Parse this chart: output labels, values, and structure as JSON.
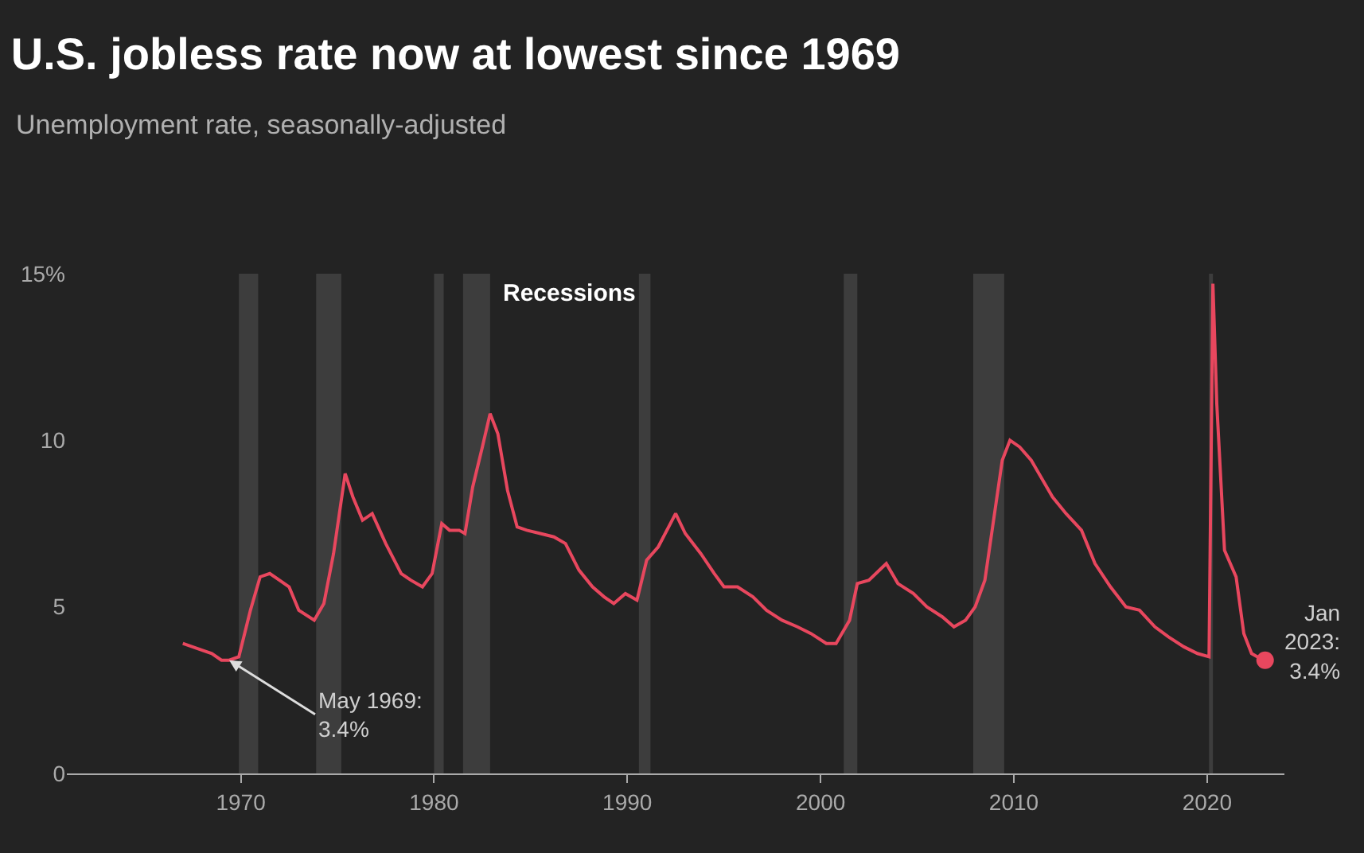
{
  "chart_data": {
    "type": "line",
    "title": "U.S. jobless rate now at lowest since 1969",
    "subtitle": "Unemployment rate, seasonally-adjusted",
    "xlim": [
      1961,
      2024
    ],
    "xticks": [
      1970,
      1980,
      1990,
      2000,
      2010,
      2020
    ],
    "ylim": [
      0,
      15
    ],
    "yticks": [
      0,
      5,
      10,
      {
        "value": 15,
        "label": "15%"
      }
    ],
    "grid": false,
    "line_style": "solid",
    "bands": [
      {
        "axis": "x",
        "from": 1969.9,
        "to": 1970.9,
        "color": "#3d3d3d"
      },
      {
        "axis": "x",
        "from": 1973.9,
        "to": 1975.2,
        "color": "#3d3d3d"
      },
      {
        "axis": "x",
        "from": 1980.0,
        "to": 1980.5,
        "color": "#3d3d3d"
      },
      {
        "axis": "x",
        "from": 1981.5,
        "to": 1982.9,
        "color": "#3d3d3d",
        "label": "Recessions"
      },
      {
        "axis": "x",
        "from": 1990.6,
        "to": 1991.2,
        "color": "#3d3d3d"
      },
      {
        "axis": "x",
        "from": 2001.2,
        "to": 2001.9,
        "color": "#3d3d3d"
      },
      {
        "axis": "x",
        "from": 2007.9,
        "to": 2009.5,
        "color": "#3d3d3d"
      },
      {
        "axis": "x",
        "from": 2020.1,
        "to": 2020.3,
        "color": "#3d3d3d"
      }
    ],
    "series": [
      {
        "color": "#e8475e",
        "x": [
          1967.0,
          1967.5,
          1968.0,
          1968.5,
          1969.0,
          1969.4,
          1969.9,
          1970.5,
          1971.0,
          1971.5,
          1972.0,
          1972.5,
          1973.0,
          1973.8,
          1974.3,
          1974.8,
          1975.4,
          1975.8,
          1976.3,
          1976.8,
          1977.5,
          1978.3,
          1978.8,
          1979.4,
          1979.9,
          1980.4,
          1980.8,
          1981.3,
          1981.6,
          1982.0,
          1982.5,
          1982.9,
          1983.3,
          1983.8,
          1984.3,
          1984.8,
          1985.5,
          1986.2,
          1986.8,
          1987.5,
          1988.2,
          1988.8,
          1989.3,
          1989.9,
          1990.5,
          1991.0,
          1991.6,
          1992.5,
          1993.0,
          1993.8,
          1994.5,
          1995.0,
          1995.7,
          1996.5,
          1997.2,
          1998.0,
          1998.8,
          1999.5,
          2000.3,
          2000.8,
          2001.5,
          2001.9,
          2002.5,
          2003.4,
          2004.0,
          2004.8,
          2005.5,
          2006.3,
          2006.9,
          2007.5,
          2008.0,
          2008.5,
          2009.0,
          2009.4,
          2009.8,
          2010.3,
          2010.9,
          2011.3,
          2012.0,
          2012.7,
          2013.5,
          2014.2,
          2015.0,
          2015.8,
          2016.5,
          2017.3,
          2018.0,
          2018.8,
          2019.5,
          2020.1,
          2020.3,
          2020.5,
          2020.9,
          2021.5,
          2021.9,
          2022.3,
          2022.6,
          2023.0
        ],
        "values": [
          3.9,
          3.8,
          3.7,
          3.6,
          3.4,
          3.4,
          3.5,
          4.9,
          5.9,
          6.0,
          5.8,
          5.6,
          4.9,
          4.6,
          5.1,
          6.6,
          9.0,
          8.3,
          7.6,
          7.8,
          6.9,
          6.0,
          5.8,
          5.6,
          6.0,
          7.5,
          7.3,
          7.3,
          7.2,
          8.6,
          9.8,
          10.8,
          10.2,
          8.5,
          7.4,
          7.3,
          7.2,
          7.1,
          6.9,
          6.1,
          5.6,
          5.3,
          5.1,
          5.4,
          5.2,
          6.4,
          6.8,
          7.8,
          7.2,
          6.6,
          6.0,
          5.6,
          5.6,
          5.3,
          4.9,
          4.6,
          4.4,
          4.2,
          3.9,
          3.9,
          4.6,
          5.7,
          5.8,
          6.3,
          5.7,
          5.4,
          5.0,
          4.7,
          4.4,
          4.6,
          5.0,
          5.8,
          7.8,
          9.4,
          10.0,
          9.8,
          9.4,
          9.0,
          8.3,
          7.8,
          7.3,
          6.3,
          5.6,
          5.0,
          4.9,
          4.4,
          4.1,
          3.8,
          3.6,
          3.5,
          14.7,
          11.1,
          6.7,
          5.9,
          4.2,
          3.6,
          3.5,
          3.4
        ]
      },
      {
        "type": "scatter",
        "color": "#e8475e",
        "marker": "circle",
        "x": [
          2023.0
        ],
        "values": [
          3.4
        ]
      }
    ],
    "annotations": [
      {
        "text": "May 1969:\n3.4%",
        "x": 1969.4,
        "y": 3.4
      },
      {
        "text": "Jan\n2023:\n3.4%",
        "x": 2023.0,
        "y": 3.4
      }
    ]
  }
}
